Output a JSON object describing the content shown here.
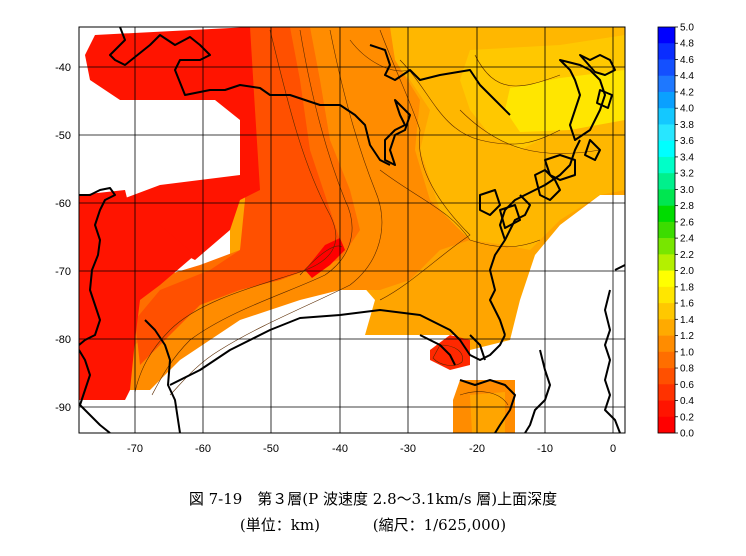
{
  "figure": {
    "caption_line1": "図 7-19　第３層(P 波速度 2.8～3.1km/s 層)上面深度",
    "unit": "(単位：km)",
    "scale": "(縮尺：1/625,000)"
  },
  "map": {
    "x_ticks": [
      "-70",
      "-60",
      "-50",
      "-40",
      "-30",
      "-20",
      "-10",
      "0"
    ],
    "y_ticks": [
      "-40",
      "-50",
      "-60",
      "-70",
      "-80",
      "-90"
    ],
    "x_range": [
      -78,
      2
    ],
    "y_range": [
      -94,
      -34
    ],
    "grid": true
  },
  "colorbar": {
    "labels": [
      "5.0",
      "4.8",
      "4.6",
      "4.4",
      "4.2",
      "4.0",
      "3.8",
      "3.6",
      "3.4",
      "3.2",
      "3.0",
      "2.8",
      "2.6",
      "2.4",
      "2.2",
      "2.0",
      "1.8",
      "1.6",
      "1.4",
      "1.2",
      "1.0",
      "0.8",
      "0.6",
      "0.4",
      "0.2",
      "0.0"
    ],
    "colors": [
      "#0000ff",
      "#0a2dff",
      "#1450ff",
      "#1e78ff",
      "#0aa0ff",
      "#14c8ff",
      "#28e6ff",
      "#00ffff",
      "#00ffc8",
      "#00f08c",
      "#00e650",
      "#00dc00",
      "#3cdc00",
      "#78e600",
      "#b4f000",
      "#ffff00",
      "#ffe600",
      "#ffc800",
      "#ffaa00",
      "#ff8c00",
      "#ff6e00",
      "#ff5000",
      "#ff3200",
      "#ff1400",
      "#ff0000"
    ]
  }
}
